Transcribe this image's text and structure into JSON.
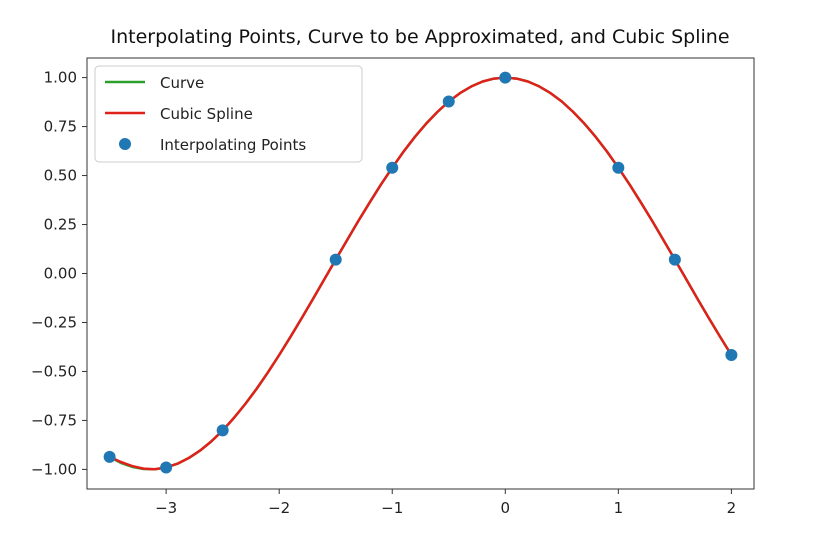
{
  "chart_data": {
    "type": "line",
    "title": "Interpolating Points, Curve to be Approximated, and Cubic Spline",
    "xlabel": "",
    "ylabel": "",
    "xlim": [
      -3.7,
      2.2
    ],
    "ylim": [
      -1.1,
      1.1
    ],
    "x_ticks": [
      -3,
      -2,
      -1,
      0,
      1,
      2
    ],
    "x_tick_labels": [
      "−3",
      "−2",
      "−1",
      "0",
      "1",
      "2"
    ],
    "y_ticks": [
      1.0,
      0.75,
      0.5,
      0.25,
      0.0,
      -0.25,
      -0.5,
      -0.75,
      -1.0
    ],
    "y_tick_labels": [
      "1.00",
      "0.75",
      "0.50",
      "0.25",
      "0.00",
      "−0.25",
      "−0.50",
      "−0.75",
      "−1.00"
    ],
    "grid": false,
    "legend_position": "top-left",
    "series": [
      {
        "name": "Curve",
        "kind": "line",
        "color": "#2ca02c",
        "x": [
          -3.5,
          -3.4,
          -3.3,
          -3.2,
          -3.1,
          -3.0,
          -2.9,
          -2.8,
          -2.7,
          -2.6,
          -2.5,
          -2.4,
          -2.3,
          -2.2,
          -2.1,
          -2.0,
          -1.9,
          -1.8,
          -1.7,
          -1.6,
          -1.5,
          -1.4,
          -1.3,
          -1.2,
          -1.1,
          -1.0,
          -0.9,
          -0.8,
          -0.7,
          -0.6,
          -0.5,
          -0.4,
          -0.3,
          -0.2,
          -0.1,
          0.0,
          0.1,
          0.2,
          0.3,
          0.4,
          0.5,
          0.6,
          0.7,
          0.8,
          0.9,
          1.0,
          1.1,
          1.2,
          1.3,
          1.4,
          1.5,
          1.6,
          1.7,
          1.8,
          1.9,
          2.0
        ],
        "y": [
          -0.936,
          -0.967,
          -0.987,
          -0.998,
          -0.999,
          -0.99,
          -0.971,
          -0.942,
          -0.904,
          -0.857,
          -0.801,
          -0.737,
          -0.666,
          -0.589,
          -0.505,
          -0.416,
          -0.323,
          -0.227,
          -0.129,
          -0.029,
          0.071,
          0.17,
          0.268,
          0.362,
          0.454,
          0.54,
          0.622,
          0.697,
          0.765,
          0.825,
          0.878,
          0.921,
          0.955,
          0.98,
          0.995,
          1.0,
          0.995,
          0.98,
          0.955,
          0.921,
          0.878,
          0.825,
          0.765,
          0.697,
          0.622,
          0.54,
          0.454,
          0.362,
          0.268,
          0.17,
          0.071,
          -0.029,
          -0.129,
          -0.227,
          -0.323,
          -0.416
        ]
      },
      {
        "name": "Cubic Spline",
        "kind": "line",
        "color": "#e0201b",
        "x": [
          -3.5,
          -3.4,
          -3.3,
          -3.2,
          -3.1,
          -3.0,
          -2.9,
          -2.8,
          -2.7,
          -2.6,
          -2.5,
          -2.4,
          -2.3,
          -2.2,
          -2.1,
          -2.0,
          -1.9,
          -1.8,
          -1.7,
          -1.6,
          -1.5,
          -1.4,
          -1.3,
          -1.2,
          -1.1,
          -1.0,
          -0.9,
          -0.8,
          -0.7,
          -0.6,
          -0.5,
          -0.4,
          -0.3,
          -0.2,
          -0.1,
          0.0,
          0.1,
          0.2,
          0.3,
          0.4,
          0.5,
          0.6,
          0.7,
          0.8,
          0.9,
          1.0,
          1.1,
          1.2,
          1.3,
          1.4,
          1.5,
          1.6,
          1.7,
          1.8,
          1.9,
          2.0
        ],
        "y": [
          -0.936,
          -0.962,
          -0.983,
          -0.996,
          -0.999,
          -0.99,
          -0.971,
          -0.942,
          -0.904,
          -0.857,
          -0.801,
          -0.737,
          -0.666,
          -0.589,
          -0.505,
          -0.416,
          -0.323,
          -0.227,
          -0.129,
          -0.029,
          0.071,
          0.17,
          0.268,
          0.362,
          0.454,
          0.54,
          0.622,
          0.697,
          0.765,
          0.825,
          0.878,
          0.921,
          0.955,
          0.98,
          0.995,
          1.0,
          0.995,
          0.98,
          0.955,
          0.921,
          0.878,
          0.825,
          0.765,
          0.697,
          0.622,
          0.54,
          0.454,
          0.362,
          0.268,
          0.17,
          0.071,
          -0.029,
          -0.129,
          -0.227,
          -0.323,
          -0.416
        ]
      },
      {
        "name": "Interpolating Points",
        "kind": "scatter",
        "color": "#1f77b4",
        "x": [
          -3.5,
          -3.0,
          -2.5,
          -1.5,
          -1.0,
          -0.5,
          0.0,
          1.0,
          1.5,
          2.0
        ],
        "y": [
          -0.936,
          -0.99,
          -0.801,
          0.071,
          0.54,
          0.878,
          1.0,
          0.54,
          0.071,
          -0.416
        ]
      }
    ]
  }
}
